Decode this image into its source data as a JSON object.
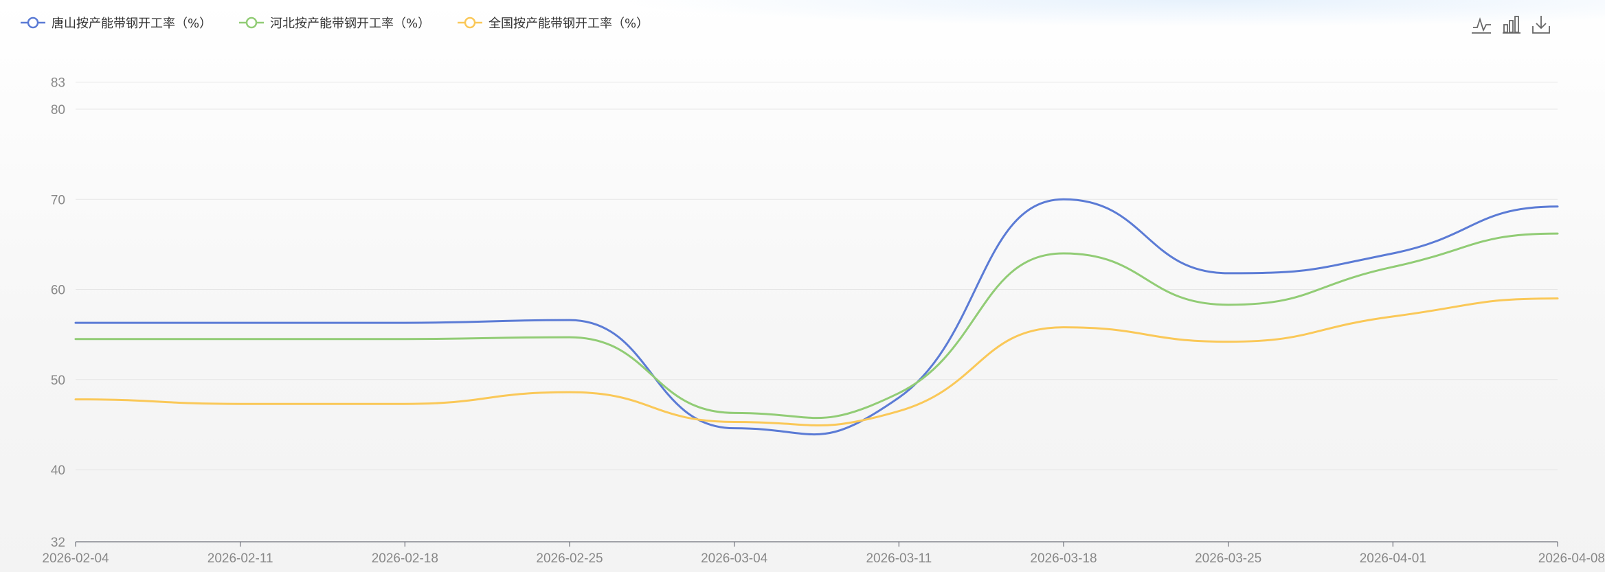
{
  "chart_data": {
    "type": "line",
    "smooth": true,
    "x": [
      "2026-02-04",
      "2026-02-11",
      "2026-02-18",
      "2026-02-25",
      "2026-03-04",
      "2026-03-11",
      "2026-03-18",
      "2026-03-25",
      "2026-04-01",
      "2026-04-08"
    ],
    "x_tick_labels": [
      "2026-02-04",
      "2026-02-11",
      "2026-02-18",
      "2026-02-25",
      "2026-03-04",
      "2026-03-11",
      "2026-03-18",
      "2026-03-25",
      "2026-04-01",
      "2026-04-08"
    ],
    "y_tick_labels": [
      "32",
      "40",
      "50",
      "60",
      "70",
      "80",
      "83"
    ],
    "ylim": [
      32,
      83
    ],
    "grid": true,
    "legend_position": "top-left",
    "series": [
      {
        "name": "唐山按产能带钢开工率（%）",
        "color": "#5b7bd5",
        "values": [
          56.3,
          56.3,
          56.3,
          56.6,
          44.6,
          48.0,
          70.0,
          61.8,
          64.0,
          69.2
        ]
      },
      {
        "name": "河北按产能带钢开工率（%）",
        "color": "#91cc75",
        "values": [
          54.5,
          54.5,
          54.5,
          54.7,
          46.3,
          48.5,
          64.0,
          58.3,
          62.5,
          66.2
        ]
      },
      {
        "name": "全国按产能带钢开工率（%）",
        "color": "#fac858",
        "values": [
          47.8,
          47.3,
          47.3,
          48.6,
          45.3,
          46.5,
          55.8,
          54.2,
          57.0,
          59.0
        ]
      }
    ]
  },
  "toolbar": {
    "line_icon": "line-chart-icon",
    "bar_icon": "bar-chart-icon",
    "download_icon": "download-icon"
  }
}
